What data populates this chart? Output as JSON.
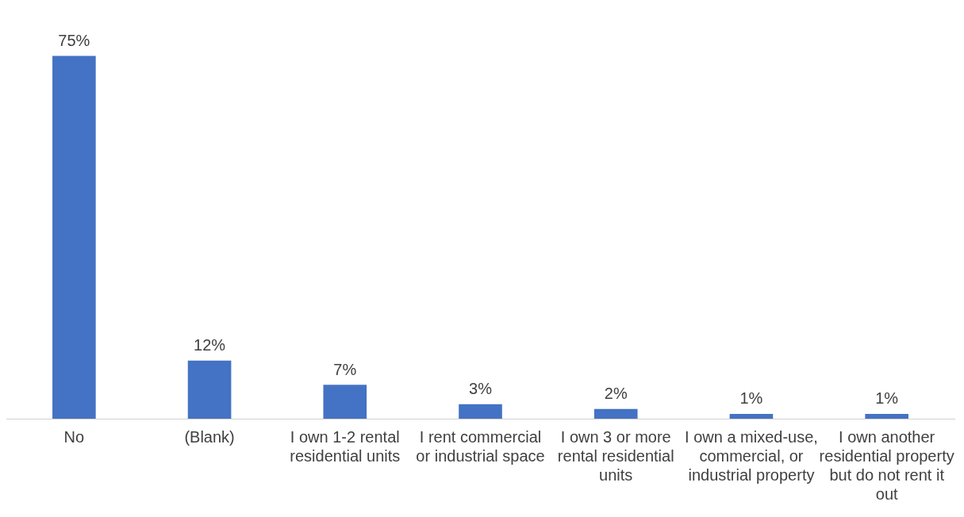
{
  "chart_data": {
    "type": "bar",
    "categories": [
      "No",
      "(Blank)",
      "I own 1-2 rental residential units",
      "I rent commercial or industrial space",
      "I own 3 or more rental residential units",
      "I own a mixed-use, commercial, or industrial property",
      "I own another residential property but do not rent it out"
    ],
    "values": [
      75,
      12,
      7,
      3,
      2,
      1,
      1
    ],
    "value_labels": [
      "75%",
      "12%",
      "7%",
      "3%",
      "2%",
      "1%",
      "1%"
    ],
    "color": "#4472c4",
    "grid": false,
    "legend": false
  }
}
